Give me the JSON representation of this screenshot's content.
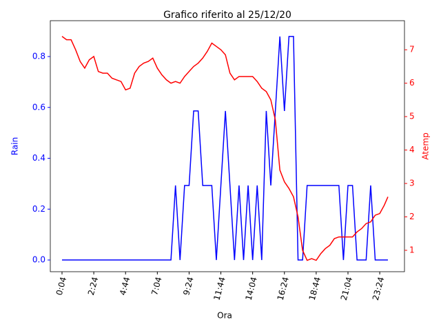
{
  "chart_data": {
    "type": "line",
    "title": "Grafico riferito al 25/12/20",
    "xlabel": "Ora",
    "ylabel": "Rain",
    "y2label": "Atemp",
    "x": [
      4,
      24,
      44,
      64,
      84,
      104,
      124,
      144,
      164,
      184,
      204,
      224,
      244,
      264,
      284,
      304,
      324,
      344,
      364,
      384,
      404,
      424,
      444,
      464,
      484,
      504,
      524,
      544,
      564,
      584,
      604,
      624,
      644,
      664,
      684,
      704,
      724,
      744,
      764,
      784,
      804,
      824,
      844,
      864,
      884,
      904,
      924,
      944,
      964,
      984,
      1004,
      1024,
      1044,
      1064,
      1084,
      1104,
      1124,
      1144,
      1164,
      1184,
      1204,
      1224,
      1244,
      1264,
      1284,
      1304,
      1324,
      1344,
      1364,
      1384,
      1404,
      1424,
      1440
    ],
    "series": [
      {
        "name": "Rain",
        "color": "#0000ff",
        "axis": "y",
        "values": [
          0,
          0,
          0,
          0,
          0,
          0,
          0,
          0,
          0,
          0,
          0,
          0,
          0,
          0,
          0,
          0,
          0,
          0,
          0,
          0,
          0,
          0,
          0,
          0,
          0,
          0.293,
          0,
          0.293,
          0.293,
          0.586,
          0.586,
          0.293,
          0.293,
          0.293,
          0,
          0.293,
          0.586,
          0.293,
          0,
          0.293,
          0,
          0.293,
          0,
          0.293,
          0,
          0.586,
          0.293,
          0.586,
          0.879,
          0.586,
          0.879,
          0.879,
          0,
          0,
          0.293,
          0.293,
          0.293,
          0.293,
          0.293,
          0.293,
          0.293,
          0.293,
          0,
          0.293,
          0.293,
          0,
          0,
          0,
          0.293,
          0,
          0,
          0,
          0
        ]
      },
      {
        "name": "Atemp",
        "color": "#ff0000",
        "axis": "y2",
        "values": [
          7.4,
          7.3,
          7.3,
          7.0,
          6.65,
          6.45,
          6.7,
          6.8,
          6.35,
          6.3,
          6.3,
          6.15,
          6.1,
          6.05,
          5.8,
          5.85,
          6.3,
          6.5,
          6.6,
          6.65,
          6.75,
          6.45,
          6.25,
          6.1,
          6.0,
          6.05,
          6.0,
          6.2,
          6.35,
          6.5,
          6.6,
          6.75,
          6.95,
          7.2,
          7.1,
          7.0,
          6.85,
          6.3,
          6.1,
          6.2,
          6.2,
          6.2,
          6.2,
          6.05,
          5.85,
          5.75,
          5.5,
          4.9,
          3.4,
          3.05,
          2.85,
          2.6,
          2.0,
          1.0,
          0.7,
          0.75,
          0.7,
          0.9,
          1.05,
          1.15,
          1.35,
          1.4,
          1.4,
          1.4,
          1.4,
          1.55,
          1.65,
          1.8,
          1.85,
          2.05,
          2.1,
          2.35,
          2.6
        ]
      }
    ],
    "xlim": [
      -47.6,
      1513
    ],
    "xticks": [
      {
        "value": 4,
        "label": "0:04"
      },
      {
        "value": 144,
        "label": "2:24"
      },
      {
        "value": 284,
        "label": "4:44"
      },
      {
        "value": 424,
        "label": "7:04"
      },
      {
        "value": 564,
        "label": "9:24"
      },
      {
        "value": 704,
        "label": "11:44"
      },
      {
        "value": 844,
        "label": "14:04"
      },
      {
        "value": 984,
        "label": "16:24"
      },
      {
        "value": 1124,
        "label": "18:44"
      },
      {
        "value": 1264,
        "label": "21:04"
      },
      {
        "value": 1404,
        "label": "23:24"
      }
    ],
    "ylim": [
      -0.046,
      0.941
    ],
    "yticks": [
      {
        "value": 0,
        "label": "0.0"
      },
      0.2,
      0.4,
      0.6,
      0.8
    ],
    "y2lim": [
      0.36,
      7.87
    ],
    "y2ticks": [
      1,
      2,
      3,
      4,
      5,
      6,
      7
    ]
  }
}
